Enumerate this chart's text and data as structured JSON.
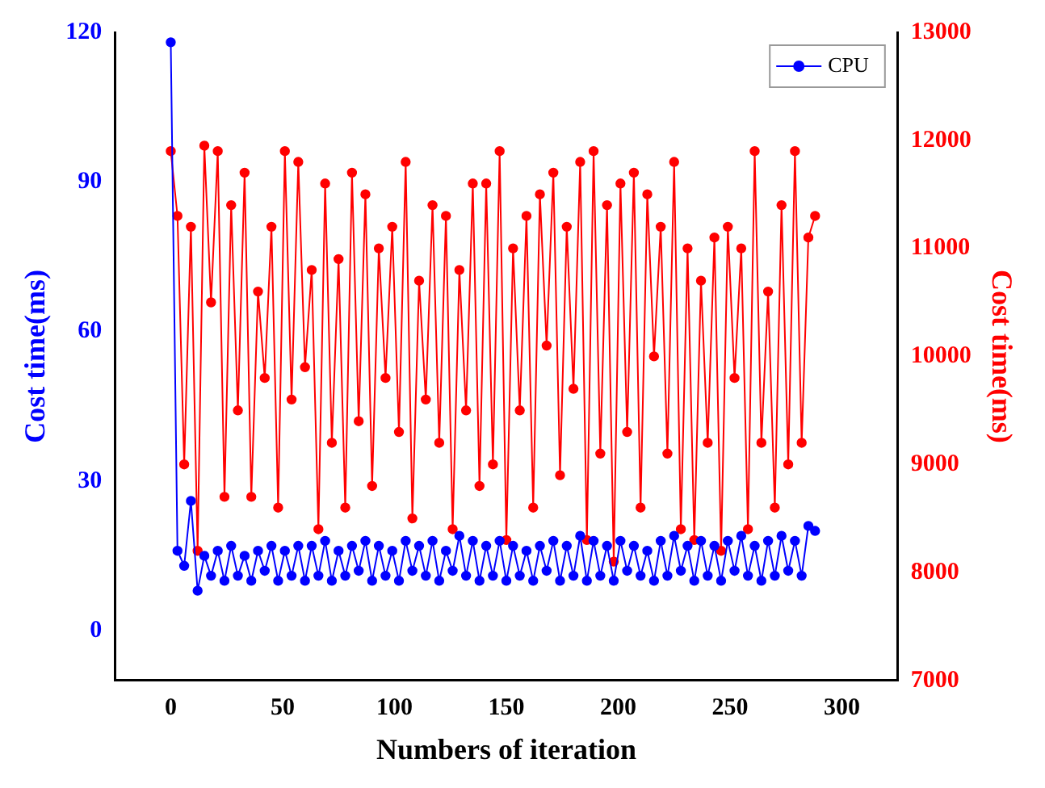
{
  "chart_data": {
    "type": "line",
    "xlabel": "Numbers of iteration",
    "ylabel": "Cost time(ms)",
    "y2label": "Cost time(ms)",
    "x": [
      0,
      3,
      6,
      9,
      12,
      15,
      18,
      21,
      24,
      27,
      30,
      33,
      36,
      39,
      42,
      45,
      48,
      51,
      54,
      57,
      60,
      63,
      66,
      69,
      72,
      75,
      78,
      81,
      84,
      87,
      90,
      93,
      96,
      99,
      102,
      105,
      108,
      111,
      114,
      117,
      120,
      123,
      126,
      129,
      132,
      135,
      138,
      141,
      144,
      147,
      150,
      153,
      156,
      159,
      162,
      165,
      168,
      171,
      174,
      177,
      180,
      183,
      186,
      189,
      192,
      195,
      198,
      201,
      204,
      207,
      210,
      213,
      216,
      219,
      222,
      225,
      228,
      231,
      234,
      237,
      240,
      243,
      246,
      249,
      252,
      255,
      258,
      261,
      264,
      267,
      270,
      273,
      276,
      279,
      282,
      285,
      288
    ],
    "series": [
      {
        "name": "CPU",
        "color": "#0000ff",
        "values": [
          118,
          16,
          13,
          26,
          8,
          15,
          11,
          16,
          10,
          17,
          11,
          15,
          10,
          16,
          12,
          17,
          10,
          16,
          11,
          17,
          10,
          17,
          11,
          18,
          10,
          16,
          11,
          17,
          12,
          18,
          10,
          17,
          11,
          16,
          10,
          18,
          12,
          17,
          11,
          18,
          10,
          16,
          12,
          19,
          11,
          18,
          10,
          17,
          11,
          18,
          10,
          17,
          11,
          16,
          10,
          17,
          12,
          18,
          10,
          17,
          11,
          19,
          10,
          18,
          11,
          17,
          10,
          18,
          12,
          17,
          11,
          16,
          10,
          18,
          11,
          19,
          12,
          17,
          10,
          18,
          11,
          17,
          10,
          18,
          12,
          19,
          11,
          17,
          10,
          18,
          11,
          19,
          12,
          18,
          11,
          21,
          20
        ]
      },
      {
        "color": "#ff0000",
        "axis": "y2",
        "values": [
          11900,
          11300,
          9000,
          11200,
          8200,
          11950,
          10500,
          11900,
          8700,
          11400,
          9500,
          11700,
          8700,
          10600,
          9800,
          11200,
          8600,
          11900,
          9600,
          11800,
          9900,
          10800,
          8400,
          11600,
          9200,
          10900,
          8600,
          11700,
          9400,
          11500,
          8800,
          11000,
          9800,
          11200,
          9300,
          11800,
          8500,
          10700,
          9600,
          11400,
          9200,
          11300,
          8400,
          10800,
          9500,
          11600,
          8800,
          11600,
          9000,
          11900,
          8300,
          11000,
          9500,
          11300,
          8600,
          11500,
          10100,
          11700,
          8900,
          11200,
          9700,
          11800,
          8300,
          11900,
          9100,
          11400,
          8100,
          11600,
          9300,
          11700,
          8600,
          11500,
          10000,
          11200,
          9100,
          11800,
          8400,
          11000,
          8300,
          10700,
          9200,
          11100,
          8200,
          11200,
          9800,
          11000,
          8400,
          11900,
          9200,
          10600,
          8600,
          11400,
          9000,
          11900,
          9200,
          11100,
          11300
        ]
      }
    ],
    "xlim": [
      -25,
      325
    ],
    "xticks": [
      0,
      50,
      100,
      150,
      200,
      250,
      300
    ],
    "ylim": [
      -10,
      120
    ],
    "yticks": [
      0,
      30,
      60,
      90,
      120
    ],
    "y2lim": [
      7000,
      13000
    ],
    "y2ticks": [
      7000,
      8000,
      9000,
      10000,
      11000,
      12000,
      13000
    ],
    "grid": false,
    "legend": "top right",
    "marker": "circle",
    "line_style": "solid"
  }
}
